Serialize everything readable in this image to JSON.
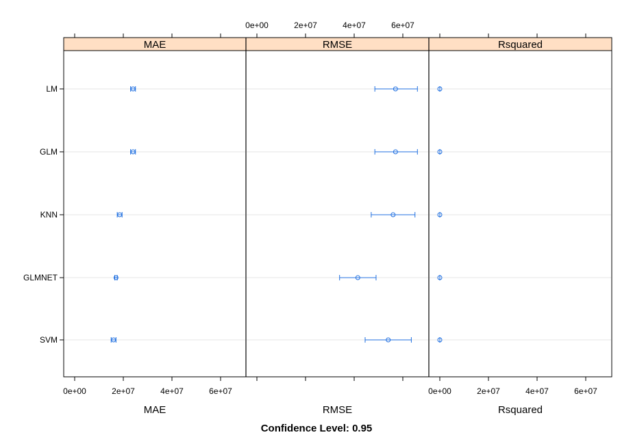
{
  "chart_data": {
    "type": "dotplot",
    "panels": [
      "MAE",
      "RMSE",
      "Rsquared"
    ],
    "models": [
      "LM",
      "GLM",
      "KNN",
      "GLMNET",
      "SVM"
    ],
    "x_ticks": [
      0,
      20000000,
      40000000,
      60000000
    ],
    "x_tick_labels": [
      "0e+00",
      "2e+07",
      "4e+07",
      "6e+07"
    ],
    "xlim": [
      -4500000,
      71000000
    ],
    "xlabels": [
      "MAE",
      "RMSE",
      "Rsquared"
    ],
    "footer": "Confidence Level: 0.95",
    "point_color": "#1f6fe0",
    "strip_color": "#ffdfc4",
    "series": [
      {
        "panel": "MAE",
        "values": [
          {
            "model": "LM",
            "estimate": 24000000,
            "lower": 23000000,
            "upper": 25000000
          },
          {
            "model": "GLM",
            "estimate": 24000000,
            "lower": 23000000,
            "upper": 25000000
          },
          {
            "model": "KNN",
            "estimate": 18500000,
            "lower": 17500000,
            "upper": 19500000
          },
          {
            "model": "GLMNET",
            "estimate": 17000000,
            "lower": 16500000,
            "upper": 17500000
          },
          {
            "model": "SVM",
            "estimate": 16000000,
            "lower": 15000000,
            "upper": 17000000
          }
        ]
      },
      {
        "panel": "RMSE",
        "values": [
          {
            "model": "LM",
            "estimate": 57000000,
            "lower": 48500000,
            "upper": 66000000
          },
          {
            "model": "GLM",
            "estimate": 57000000,
            "lower": 48500000,
            "upper": 66000000
          },
          {
            "model": "KNN",
            "estimate": 56000000,
            "lower": 47000000,
            "upper": 65000000
          },
          {
            "model": "GLMNET",
            "estimate": 41500000,
            "lower": 34000000,
            "upper": 49000000
          },
          {
            "model": "SVM",
            "estimate": 54000000,
            "lower": 44500000,
            "upper": 63500000
          }
        ]
      },
      {
        "panel": "Rsquared",
        "values": [
          {
            "model": "LM",
            "estimate": 0.6,
            "lower": 0.55,
            "upper": 0.65
          },
          {
            "model": "GLM",
            "estimate": 0.6,
            "lower": 0.55,
            "upper": 0.65
          },
          {
            "model": "KNN",
            "estimate": 0.6,
            "lower": 0.55,
            "upper": 0.65
          },
          {
            "model": "GLMNET",
            "estimate": 0.6,
            "lower": 0.55,
            "upper": 0.65
          },
          {
            "model": "SVM",
            "estimate": 0.6,
            "lower": 0.55,
            "upper": 0.65
          }
        ]
      }
    ]
  }
}
